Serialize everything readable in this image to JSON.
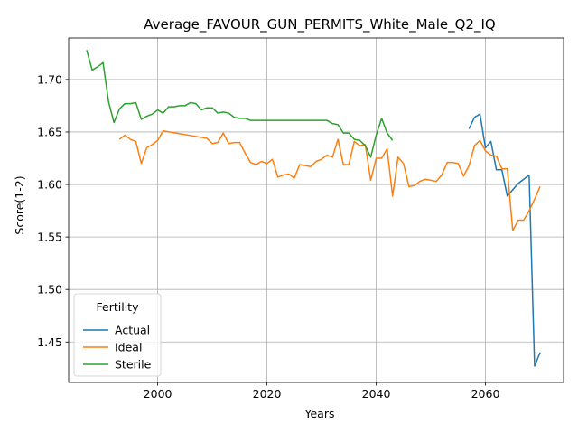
{
  "chart_data": {
    "type": "line",
    "title": "Average_FAVOUR_GUN_PERMITS_White_Male_Q2_IQ",
    "xlabel": "Years",
    "ylabel": "Score(1-2)",
    "xlim": [
      1983.7,
      2074.3
    ],
    "ylim": [
      1.4115,
      1.7395
    ],
    "xticks": [
      2000,
      2020,
      2040,
      2060
    ],
    "yticks": [
      1.45,
      1.5,
      1.55,
      1.6,
      1.65,
      1.7
    ],
    "ytick_labels": [
      "1.45",
      "1.50",
      "1.55",
      "1.60",
      "1.65",
      "1.70"
    ],
    "grid": true,
    "legend": {
      "title": "Fertility",
      "placement": "lower-left"
    },
    "series": [
      {
        "name": "Actual",
        "color": "#1f77b4",
        "x": [
          2057,
          2058,
          2059,
          2060,
          2061,
          2062,
          2063,
          2064,
          2065,
          2066,
          2067,
          2068,
          2069,
          2070
        ],
        "y": [
          1.653,
          1.664,
          1.667,
          1.635,
          1.641,
          1.614,
          1.614,
          1.589,
          1.595,
          1.601,
          1.605,
          1.609,
          1.427,
          1.44
        ]
      },
      {
        "name": "Ideal",
        "color": "#ff7f0e",
        "x": [
          1993,
          1994,
          1995,
          1996,
          1997,
          1998,
          1999,
          2000,
          2001,
          2009,
          2010,
          2011,
          2012,
          2013,
          2014,
          2015,
          2016,
          2017,
          2018,
          2019,
          2020,
          2021,
          2022,
          2023,
          2024,
          2025,
          2026,
          2027,
          2028,
          2029,
          2030,
          2031,
          2032,
          2033,
          2034,
          2035,
          2036,
          2037,
          2038,
          2039,
          2040,
          2041,
          2042,
          2043,
          2044,
          2045,
          2046,
          2047,
          2048,
          2049,
          2050,
          2051,
          2052,
          2053,
          2054,
          2055,
          2056,
          2057,
          2058,
          2059,
          2060,
          2061,
          2062,
          2063,
          2064,
          2065,
          2066,
          2067,
          2068,
          2069,
          2070
        ],
        "y": [
          1.643,
          1.647,
          1.643,
          1.641,
          1.62,
          1.635,
          1.638,
          1.642,
          1.651,
          1.644,
          1.639,
          1.64,
          1.649,
          1.639,
          1.64,
          1.64,
          1.63,
          1.621,
          1.619,
          1.622,
          1.62,
          1.624,
          1.607,
          1.609,
          1.61,
          1.606,
          1.619,
          1.618,
          1.617,
          1.622,
          1.624,
          1.628,
          1.626,
          1.643,
          1.619,
          1.619,
          1.641,
          1.637,
          1.638,
          1.604,
          1.625,
          1.625,
          1.634,
          1.589,
          1.626,
          1.62,
          1.598,
          1.599,
          1.603,
          1.605,
          1.604,
          1.603,
          1.609,
          1.621,
          1.621,
          1.62,
          1.608,
          1.618,
          1.637,
          1.642,
          1.632,
          1.628,
          1.627,
          1.615,
          1.615,
          1.556,
          1.566,
          1.566,
          1.575,
          1.586,
          1.598
        ]
      },
      {
        "name": "Sterile",
        "color": "#2ca02c",
        "x": [
          1987,
          1988,
          1989,
          1990,
          1991,
          1992,
          1993,
          1994,
          1995,
          1996,
          1997,
          1998,
          1999,
          2000,
          2001,
          2002,
          2003,
          2004,
          2005,
          2006,
          2007,
          2008,
          2009,
          2010,
          2011,
          2012,
          2013,
          2014,
          2015,
          2016,
          2017,
          2018,
          2019,
          2020,
          2021,
          2022,
          2023,
          2024,
          2025,
          2026,
          2027,
          2028,
          2029,
          2030,
          2031,
          2032,
          2033,
          2034,
          2035,
          2036,
          2037,
          2038,
          2039,
          2040,
          2041,
          2042,
          2043
        ],
        "y": [
          1.728,
          1.709,
          1.712,
          1.716,
          1.679,
          1.659,
          1.672,
          1.677,
          1.677,
          1.678,
          1.662,
          1.665,
          1.667,
          1.671,
          1.668,
          1.674,
          1.674,
          1.675,
          1.675,
          1.678,
          1.677,
          1.671,
          1.673,
          1.673,
          1.668,
          1.669,
          1.668,
          1.664,
          1.663,
          1.663,
          1.661,
          1.661,
          1.661,
          1.661,
          1.661,
          1.661,
          1.661,
          1.661,
          1.661,
          1.661,
          1.661,
          1.661,
          1.661,
          1.661,
          1.661,
          1.658,
          1.657,
          1.649,
          1.649,
          1.643,
          1.642,
          1.637,
          1.626,
          1.647,
          1.663,
          1.649,
          1.642
        ]
      }
    ]
  }
}
